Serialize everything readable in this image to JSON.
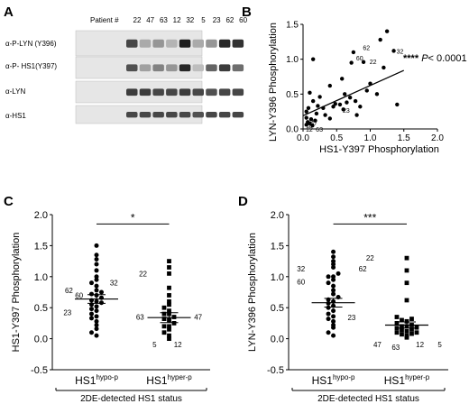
{
  "panels": {
    "A": {
      "letter": "A",
      "header": "Patient #",
      "patients": [
        "22",
        "47",
        "63",
        "12",
        "32",
        "5",
        "23",
        "62",
        "60"
      ],
      "rows": [
        "α-P-LYN (Y396)",
        "α-P- HS1(Y397)",
        "α-LYN",
        "α-HS1"
      ]
    },
    "B": {
      "letter": "B"
    },
    "C": {
      "letter": "C"
    },
    "D": {
      "letter": "D"
    }
  },
  "chart_data": [
    {
      "panel": "B",
      "type": "scatter",
      "xlabel": "HS1-Y397 Phosphorylation",
      "ylabel": "LYN-Y396 Phosphorylation",
      "xlim": [
        0,
        2.0
      ],
      "ylim": [
        0,
        1.5
      ],
      "xticks": [
        "0.0",
        "0.5",
        "1.0",
        "1.5",
        "2.0"
      ],
      "yticks": [
        "0.0",
        "0.5",
        "1.0",
        "1.5"
      ],
      "significance": "****",
      "p_label": "P",
      "p_value": "< 0.0001",
      "fit": {
        "x": [
          0,
          1.5
        ],
        "y": [
          0.19,
          0.84
        ]
      },
      "points": [
        {
          "x": 0.05,
          "y": 0.06
        },
        {
          "x": 0.07,
          "y": 0.1
        },
        {
          "x": 0.1,
          "y": 0.08
        },
        {
          "x": 0.05,
          "y": 0.16
        },
        {
          "x": 0.12,
          "y": 0.14
        },
        {
          "x": 0.14,
          "y": 0.05
        },
        {
          "x": 0.18,
          "y": 0.12
        },
        {
          "x": 0.2,
          "y": 0.22
        },
        {
          "x": 0.22,
          "y": 0.33
        },
        {
          "x": 0.05,
          "y": 0.25
        },
        {
          "x": 0.08,
          "y": 0.3
        },
        {
          "x": 0.15,
          "y": 0.4
        },
        {
          "x": 0.1,
          "y": 0.52
        },
        {
          "x": 0.25,
          "y": 0.46
        },
        {
          "x": 0.3,
          "y": 0.3
        },
        {
          "x": 0.33,
          "y": 0.2
        },
        {
          "x": 0.4,
          "y": 0.15
        },
        {
          "x": 0.45,
          "y": 0.32
        },
        {
          "x": 0.48,
          "y": 0.36
        },
        {
          "x": 0.4,
          "y": 0.62
        },
        {
          "x": 0.55,
          "y": 0.35
        },
        {
          "x": 0.6,
          "y": 0.28
        },
        {
          "x": 0.62,
          "y": 0.5
        },
        {
          "x": 0.58,
          "y": 0.72
        },
        {
          "x": 0.65,
          "y": 0.38
        },
        {
          "x": 0.7,
          "y": 0.45
        },
        {
          "x": 0.72,
          "y": 0.95
        },
        {
          "x": 0.75,
          "y": 1.1
        },
        {
          "x": 0.78,
          "y": 0.4
        },
        {
          "x": 0.8,
          "y": 0.2
        },
        {
          "x": 0.85,
          "y": 0.32
        },
        {
          "x": 0.9,
          "y": 0.96
        },
        {
          "x": 0.95,
          "y": 0.55
        },
        {
          "x": 1.0,
          "y": 0.65
        },
        {
          "x": 1.1,
          "y": 0.5
        },
        {
          "x": 1.15,
          "y": 1.28
        },
        {
          "x": 1.2,
          "y": 0.88
        },
        {
          "x": 1.25,
          "y": 1.4
        },
        {
          "x": 1.35,
          "y": 1.12
        },
        {
          "x": 1.4,
          "y": 0.35
        },
        {
          "x": 0.15,
          "y": 1.0
        }
      ],
      "labels": [
        {
          "text": "62",
          "x": 0.85,
          "y": 1.17
        },
        {
          "text": "60",
          "x": 0.75,
          "y": 1.02
        },
        {
          "text": "32",
          "x": 1.35,
          "y": 1.12
        },
        {
          "text": "22",
          "x": 0.95,
          "y": 0.97
        },
        {
          "text": "23",
          "x": 0.55,
          "y": 0.27
        },
        {
          "text": "47",
          "x": 0.07,
          "y": 0.1
        },
        {
          "text": "5",
          "x": 0.02,
          "y": 0.06
        },
        {
          "text": "12",
          "x": 0.0,
          "y": 0.0
        },
        {
          "text": "63",
          "x": 0.15,
          "y": 0.0
        }
      ]
    },
    {
      "panel": "C",
      "type": "scatter",
      "xlabel": "2DE-detected HS1 status",
      "ylabel": "HS1-Y397 Phosphorylation",
      "ylim": [
        -0.5,
        2.0
      ],
      "yticks": [
        "-0.5",
        "0.0",
        "0.5",
        "1.0",
        "1.5",
        "2.0"
      ],
      "significance": "*",
      "groups": [
        {
          "base": "HS1",
          "sup": "hypo-p",
          "marker": "circle",
          "mean": 0.64,
          "sem": 0.07,
          "values": [
            0.05,
            0.1,
            0.16,
            0.22,
            0.28,
            0.33,
            0.36,
            0.4,
            0.45,
            0.48,
            0.52,
            0.55,
            0.58,
            0.6,
            0.62,
            0.66,
            0.7,
            0.72,
            0.75,
            0.78,
            0.85,
            0.9,
            0.95,
            1.0,
            1.1,
            1.2,
            1.28,
            1.35,
            1.5
          ]
        },
        {
          "base": "HS1",
          "sup": "hyper-p",
          "marker": "square",
          "mean": 0.34,
          "sem": 0.08,
          "values": [
            0.0,
            0.05,
            0.1,
            0.15,
            0.2,
            0.2,
            0.25,
            0.3,
            0.32,
            0.35,
            0.4,
            0.4,
            0.45,
            0.5,
            0.55,
            0.6,
            0.7,
            0.82,
            1.05,
            1.15,
            1.25
          ]
        }
      ],
      "labels": [
        {
          "text": "62",
          "x": 0.62,
          "y": 0.78
        },
        {
          "text": "60",
          "x": 0.76,
          "y": 0.7
        },
        {
          "text": "32",
          "x": 1.24,
          "y": 0.9
        },
        {
          "text": "23",
          "x": 0.6,
          "y": 0.42
        },
        {
          "text": "22",
          "x": 1.64,
          "y": 1.05
        },
        {
          "text": "63",
          "x": 1.6,
          "y": 0.35
        },
        {
          "text": "47",
          "x": 2.4,
          "y": 0.35
        },
        {
          "text": "5",
          "x": 1.8,
          "y": -0.09
        },
        {
          "text": "12",
          "x": 2.12,
          "y": -0.09
        }
      ]
    },
    {
      "panel": "D",
      "type": "scatter",
      "xlabel": "2DE-detected HS1 status",
      "ylabel": "LYN-Y396 Phosphorylation",
      "ylim": [
        -0.5,
        2.0
      ],
      "yticks": [
        "-0.5",
        "0.0",
        "0.5",
        "1.0",
        "1.5",
        "2.0"
      ],
      "significance": "***",
      "groups": [
        {
          "base": "HS1",
          "sup": "hypo-p",
          "marker": "circle",
          "mean": 0.58,
          "sem": 0.07,
          "values": [
            0.05,
            0.1,
            0.18,
            0.22,
            0.28,
            0.32,
            0.36,
            0.4,
            0.45,
            0.5,
            0.53,
            0.57,
            0.6,
            0.63,
            0.67,
            0.72,
            0.78,
            0.85,
            0.9,
            0.95,
            1.0,
            1.0,
            1.05,
            1.15,
            1.2,
            1.25,
            1.32,
            1.4
          ]
        },
        {
          "base": "HS1",
          "sup": "hyper-p",
          "marker": "square",
          "mean": 0.22,
          "sem": 0.05,
          "values": [
            0.02,
            0.05,
            0.07,
            0.08,
            0.1,
            0.1,
            0.12,
            0.14,
            0.15,
            0.17,
            0.18,
            0.2,
            0.2,
            0.22,
            0.25,
            0.28,
            0.3,
            0.32,
            0.35,
            0.62,
            0.9,
            1.1,
            1.3
          ]
        }
      ],
      "labels": [
        {
          "text": "32",
          "x": 0.56,
          "y": 1.13
        },
        {
          "text": "62",
          "x": 1.4,
          "y": 1.13
        },
        {
          "text": "60",
          "x": 0.56,
          "y": 0.92
        },
        {
          "text": "23",
          "x": 1.25,
          "y": 0.34
        },
        {
          "text": "22",
          "x": 1.5,
          "y": 1.3
        },
        {
          "text": "47",
          "x": 1.6,
          "y": -0.09
        },
        {
          "text": "63",
          "x": 1.85,
          "y": -0.14
        },
        {
          "text": "12",
          "x": 2.18,
          "y": -0.09
        },
        {
          "text": "5",
          "x": 2.45,
          "y": -0.09
        }
      ]
    }
  ]
}
